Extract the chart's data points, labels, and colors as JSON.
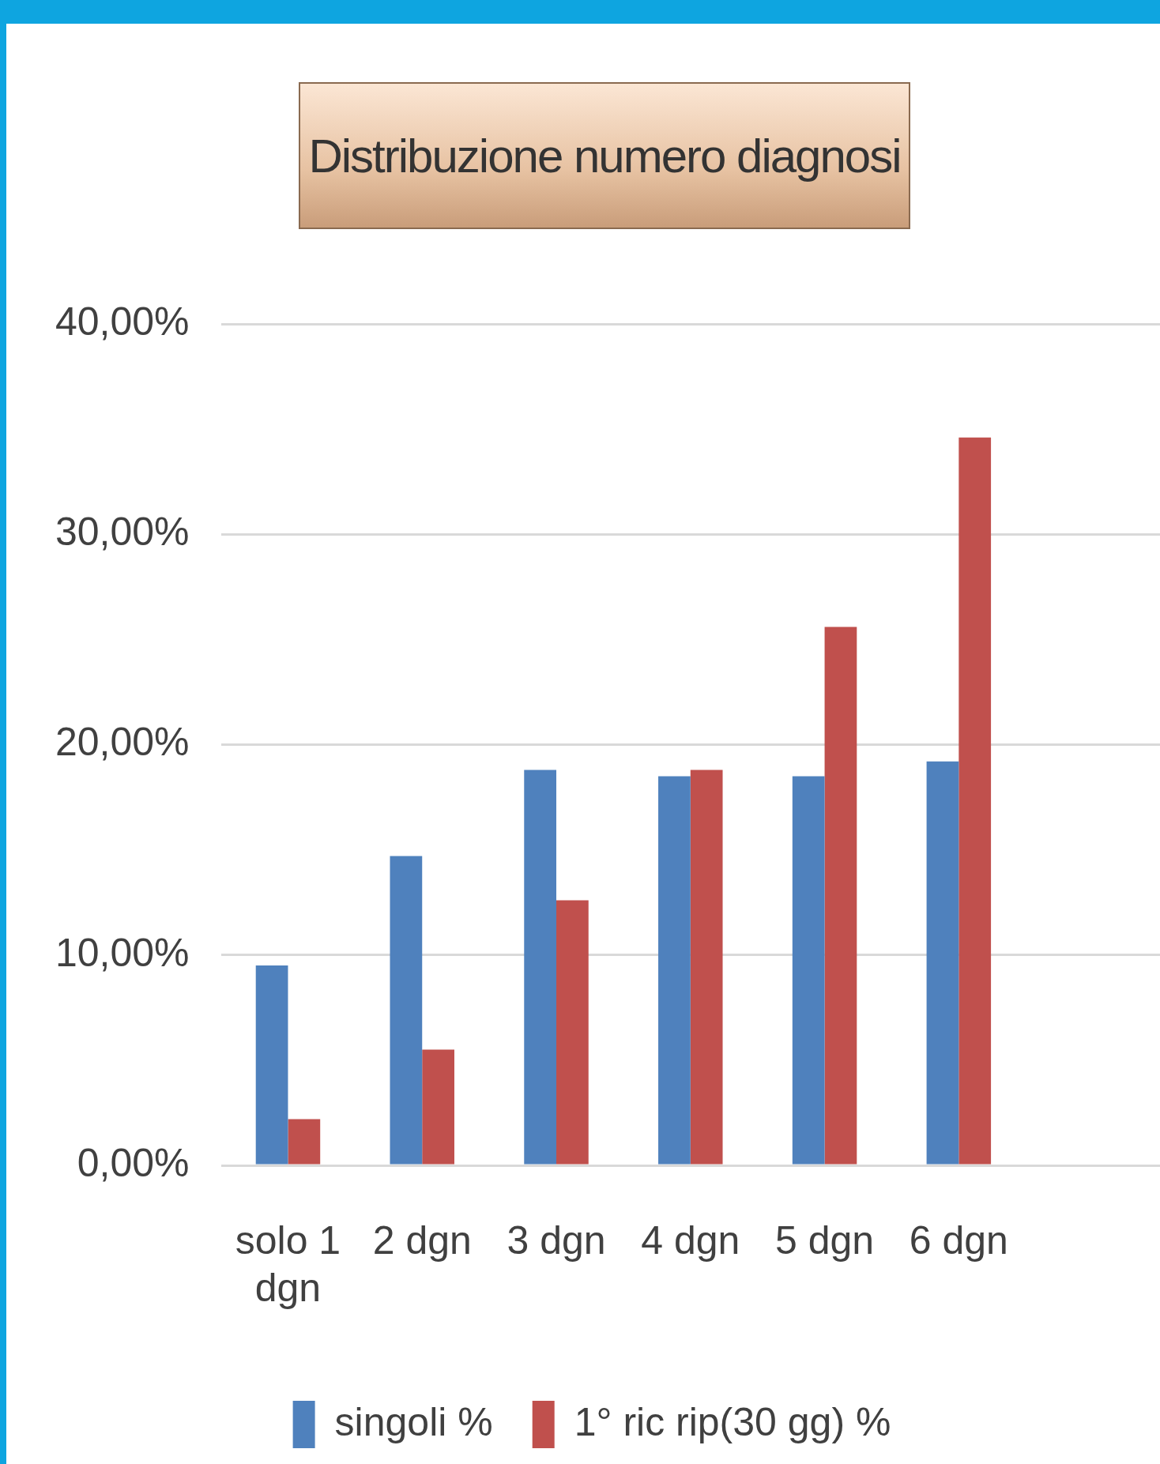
{
  "chart_data": {
    "type": "bar",
    "title": "Distribuzione numero diagnosi",
    "categories": [
      "solo 1 dgn",
      "2 dgn",
      "3 dgn",
      "4 dgn",
      "5 dgn",
      "6 dgn",
      null
    ],
    "series": [
      {
        "name": "singoli %",
        "color": "#4f81bd",
        "values": [
          9.5,
          14.7,
          18.8,
          18.5,
          18.5,
          19.2,
          null
        ]
      },
      {
        "name": "1° ric rip(30 gg) %",
        "color": "#c0504d",
        "values": [
          2.2,
          5.5,
          12.6,
          18.8,
          25.6,
          34.6,
          null
        ]
      }
    ],
    "ylim": [
      0,
      40
    ],
    "yticks": [
      {
        "value": 0,
        "label": "0,00%"
      },
      {
        "value": 10,
        "label": "10,00%"
      },
      {
        "value": 20,
        "label": "20,00%"
      },
      {
        "value": 30,
        "label": "30,00%"
      },
      {
        "value": 40,
        "label": "40,00%"
      }
    ],
    "grid": "y",
    "legend": "bottom"
  }
}
